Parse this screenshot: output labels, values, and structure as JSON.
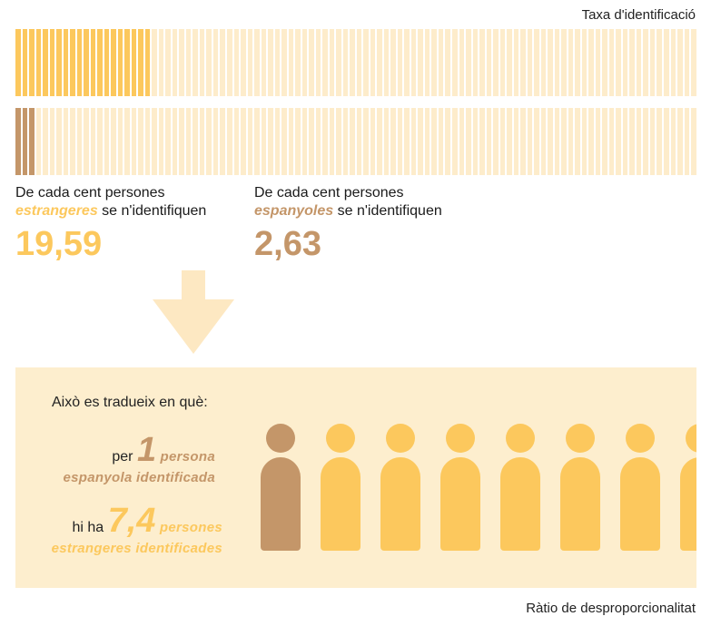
{
  "colors": {
    "foreign": "#fcc85d",
    "foreign_light": "#fdeccb",
    "spanish": "#c49669",
    "spanish_light": "#fdeccb",
    "panel_bg": "#fdeece",
    "arrow": "#fde8c2"
  },
  "header": {
    "caption": "Taxa d'identificació"
  },
  "bars": {
    "foreign_filled": 20,
    "spanish_filled": 3,
    "total": 100
  },
  "stats": {
    "foreign": {
      "line1": "De cada cent persones",
      "emph": "estrangeres",
      "line2_rest": " se n'identifiquen",
      "value": "19,59"
    },
    "spanish": {
      "line1": "De cada cent persones",
      "emph": "espanyoles",
      "line2_rest": " se n'identifiquen",
      "value": "2,63"
    }
  },
  "panel": {
    "heading": "Això es tradueix en què:",
    "line1_prefix": "per",
    "line1_number": "1",
    "line1_word": "persona",
    "line1_sub": "espanyola identificada",
    "line2_prefix": "hi ha",
    "line2_number": "7,4",
    "line2_word": "persones",
    "line2_sub": "estrangeres identificades",
    "people_spanish": 1,
    "people_foreign": 7.4
  },
  "footer": {
    "caption": "Ràtio de desproporcionalitat"
  }
}
